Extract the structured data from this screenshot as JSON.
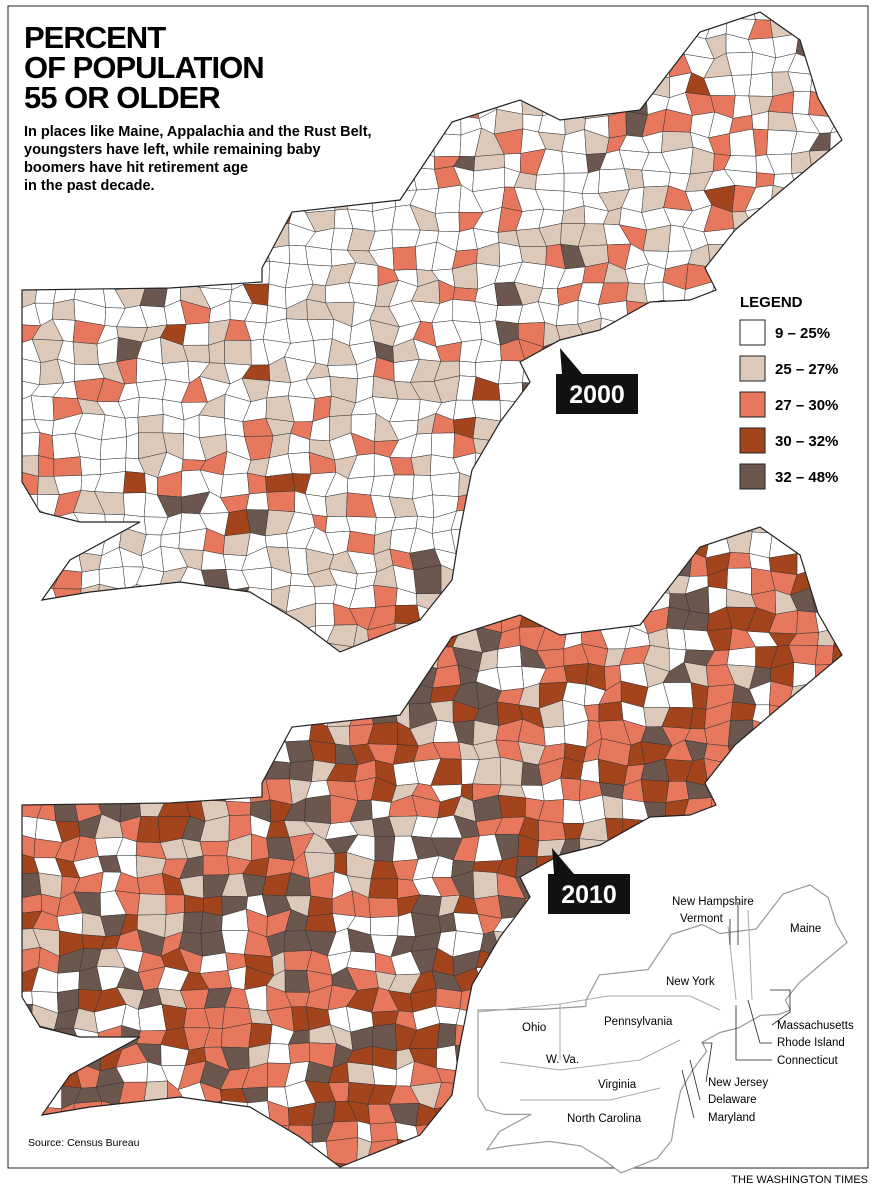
{
  "title_lines": [
    "PERCENT",
    "OF POPULATION",
    "55 OR OLDER"
  ],
  "subtitle_lines": [
    "In places like Maine, Appalachia and the Rust Belt,",
    "youngsters have left, while remaining baby",
    "boomers have hit retirement age",
    "in the past decade."
  ],
  "legend": {
    "title": "LEGEND",
    "items": [
      {
        "label": "9 – 25%",
        "color": "#ffffff"
      },
      {
        "label": "25 – 27%",
        "color": "#dcc9ba"
      },
      {
        "label": "27 – 30%",
        "color": "#e8785d"
      },
      {
        "label": "30 – 32%",
        "color": "#a3441d"
      },
      {
        "label": "32 – 48%",
        "color": "#6b574e"
      }
    ]
  },
  "maps": [
    {
      "label": "2000"
    },
    {
      "label": "2010"
    }
  ],
  "inset": {
    "states": [
      {
        "label": "New Hampshire"
      },
      {
        "label": "Vermont"
      },
      {
        "label": "Maine"
      },
      {
        "label": "New York"
      },
      {
        "label": "Ohio"
      },
      {
        "label": "Pennsylvania"
      },
      {
        "label": "Massachusetts"
      },
      {
        "label": "Rhode Island"
      },
      {
        "label": "Connecticut"
      },
      {
        "label": "W. Va."
      },
      {
        "label": "New Jersey"
      },
      {
        "label": "Virginia"
      },
      {
        "label": "Delaware"
      },
      {
        "label": "Maryland"
      },
      {
        "label": "North Carolina"
      }
    ]
  },
  "source": "Source: Census Bureau",
  "credit": "THE WASHINGTON TIMES"
}
